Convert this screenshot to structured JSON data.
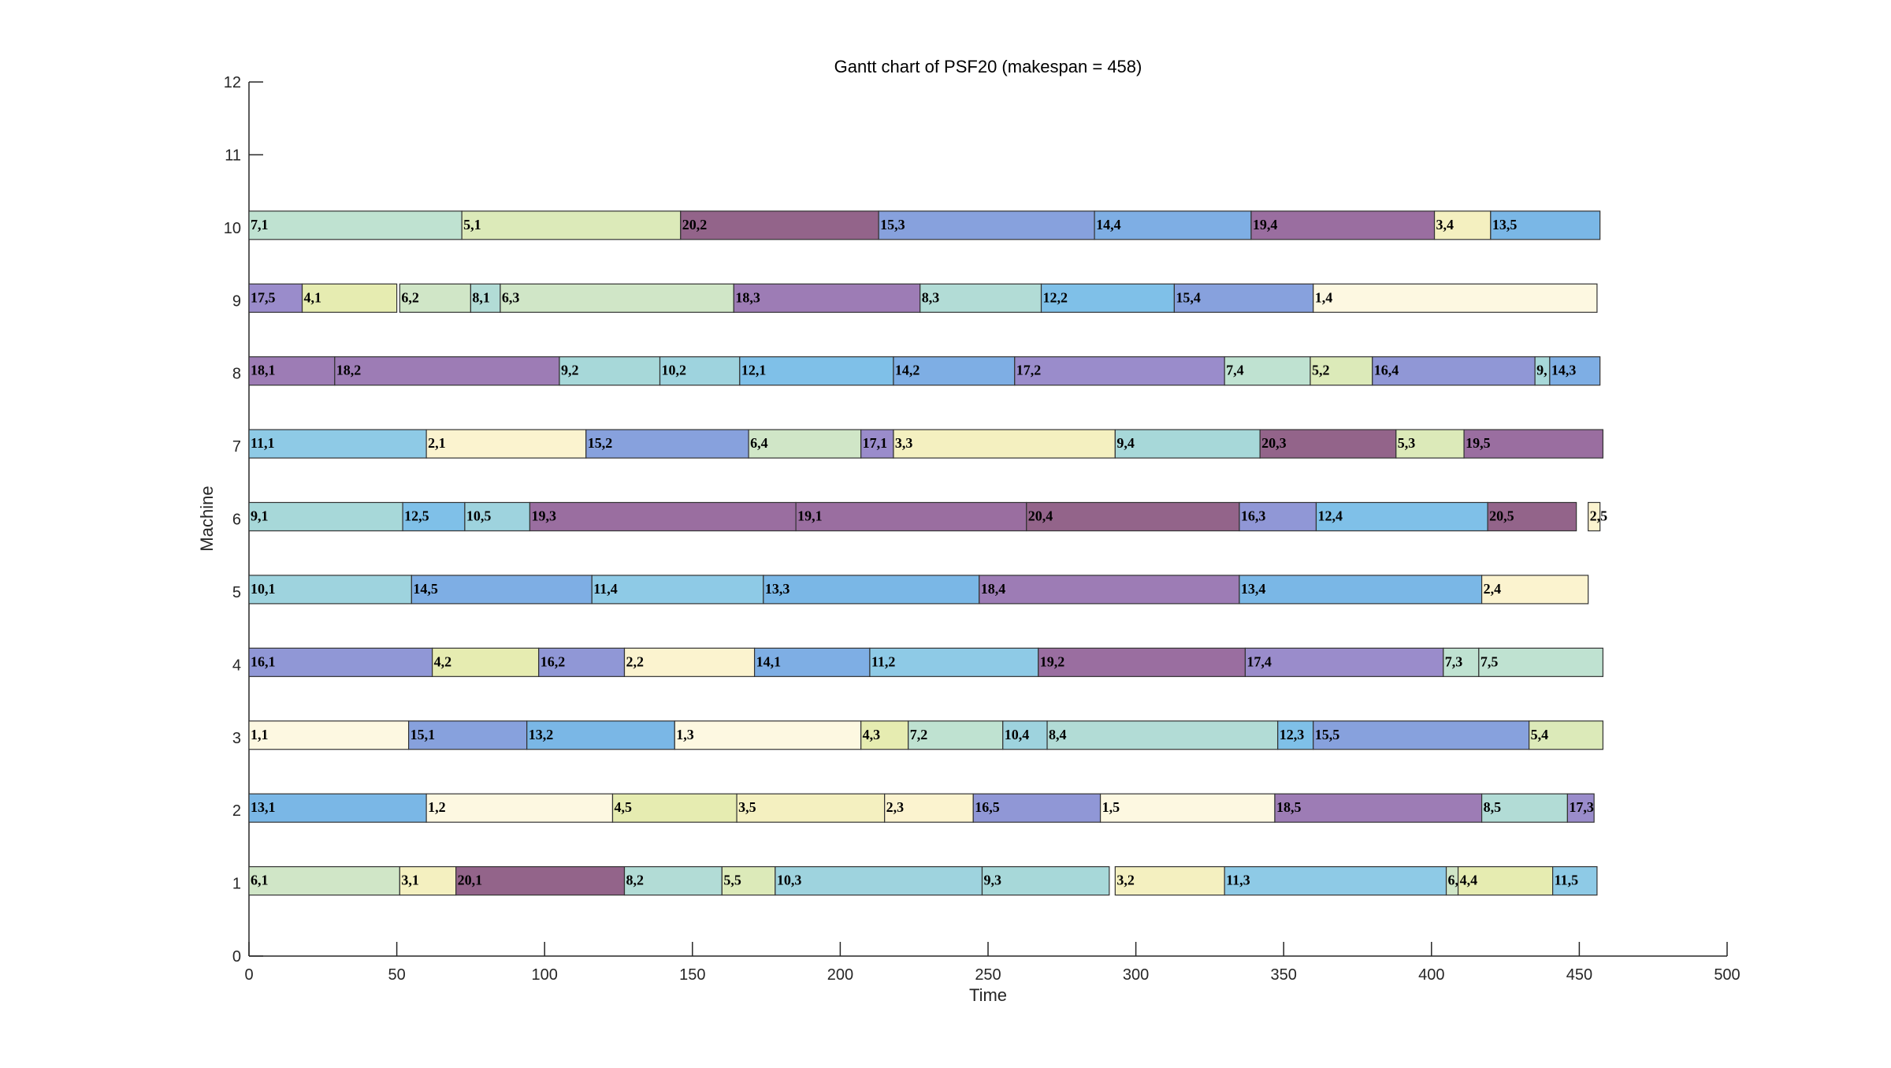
{
  "chart_data": {
    "type": "gantt",
    "title": "Gantt chart of PSF20 (makespan = 458)",
    "xlabel": "Time",
    "ylabel": "Machine",
    "xlim": [
      0,
      500
    ],
    "ylim": [
      0,
      12
    ],
    "x_ticks": [
      0,
      50,
      100,
      150,
      200,
      250,
      300,
      350,
      400,
      450,
      500
    ],
    "y_ticks": [
      0,
      1,
      2,
      3,
      4,
      5,
      6,
      7,
      8,
      9,
      10,
      11,
      12
    ],
    "grid": false,
    "job_colors": {
      "1": "#fdf8e1",
      "2": "#fbf3cf",
      "3": "#f4f0c0",
      "4": "#e6ecb1",
      "5": "#dceab9",
      "6": "#d0e6c7",
      "7": "#bfe2d1",
      "8": "#b2dcd6",
      "9": "#a7d8d9",
      "10": "#9ed3de",
      "11": "#8ecae6",
      "12": "#7fc0e8",
      "13": "#7ab7e6",
      "14": "#7eaee4",
      "15": "#87a1dd",
      "16": "#9097d6",
      "17": "#9a8ccb",
      "18": "#9d7cb5",
      "19": "#9a6ea0",
      "20": "#93648a"
    },
    "machines": [
      {
        "machine": 1,
        "ops": [
          {
            "label": "6,1",
            "job": 6,
            "start": 0,
            "end": 51
          },
          {
            "label": "3,1",
            "job": 3,
            "start": 51,
            "end": 70
          },
          {
            "label": "20,1",
            "job": 20,
            "start": 70,
            "end": 127
          },
          {
            "label": "8,2",
            "job": 8,
            "start": 127,
            "end": 160
          },
          {
            "label": "5,5",
            "job": 5,
            "start": 160,
            "end": 178
          },
          {
            "label": "10,3",
            "job": 10,
            "start": 178,
            "end": 248
          },
          {
            "label": "9,3",
            "job": 9,
            "start": 248,
            "end": 291
          },
          {
            "label": "3,2",
            "job": 3,
            "start": 293,
            "end": 330
          },
          {
            "label": "11,3",
            "job": 11,
            "start": 330,
            "end": 405
          },
          {
            "label": "6,",
            "job": 6,
            "start": 405,
            "end": 409
          },
          {
            "label": "4,4",
            "job": 4,
            "start": 409,
            "end": 441
          },
          {
            "label": "11,5",
            "job": 11,
            "start": 441,
            "end": 456
          }
        ]
      },
      {
        "machine": 2,
        "ops": [
          {
            "label": "13,1",
            "job": 13,
            "start": 0,
            "end": 60
          },
          {
            "label": "1,2",
            "job": 1,
            "start": 60,
            "end": 123
          },
          {
            "label": "4,5",
            "job": 4,
            "start": 123,
            "end": 165
          },
          {
            "label": "3,5",
            "job": 3,
            "start": 165,
            "end": 215
          },
          {
            "label": "2,3",
            "job": 2,
            "start": 215,
            "end": 245
          },
          {
            "label": "16,5",
            "job": 16,
            "start": 245,
            "end": 288
          },
          {
            "label": "1,5",
            "job": 1,
            "start": 288,
            "end": 347
          },
          {
            "label": "18,5",
            "job": 18,
            "start": 347,
            "end": 417
          },
          {
            "label": "8,5",
            "job": 8,
            "start": 417,
            "end": 446
          },
          {
            "label": "17,3",
            "job": 17,
            "start": 446,
            "end": 455
          }
        ]
      },
      {
        "machine": 3,
        "ops": [
          {
            "label": "1,1",
            "job": 1,
            "start": 0,
            "end": 54
          },
          {
            "label": "15,1",
            "job": 15,
            "start": 54,
            "end": 94
          },
          {
            "label": "13,2",
            "job": 13,
            "start": 94,
            "end": 144
          },
          {
            "label": "1,3",
            "job": 1,
            "start": 144,
            "end": 207
          },
          {
            "label": "4,3",
            "job": 4,
            "start": 207,
            "end": 223
          },
          {
            "label": "7,2",
            "job": 7,
            "start": 223,
            "end": 255
          },
          {
            "label": "10,4",
            "job": 10,
            "start": 255,
            "end": 270
          },
          {
            "label": "8,4",
            "job": 8,
            "start": 270,
            "end": 348
          },
          {
            "label": "12,3",
            "job": 12,
            "start": 348,
            "end": 360
          },
          {
            "label": "15,5",
            "job": 15,
            "start": 360,
            "end": 433
          },
          {
            "label": "5,4",
            "job": 5,
            "start": 433,
            "end": 458
          }
        ]
      },
      {
        "machine": 4,
        "ops": [
          {
            "label": "16,1",
            "job": 16,
            "start": 0,
            "end": 62
          },
          {
            "label": "4,2",
            "job": 4,
            "start": 62,
            "end": 98
          },
          {
            "label": "16,2",
            "job": 16,
            "start": 98,
            "end": 127
          },
          {
            "label": "2,2",
            "job": 2,
            "start": 127,
            "end": 171
          },
          {
            "label": "14,1",
            "job": 14,
            "start": 171,
            "end": 210
          },
          {
            "label": "11,2",
            "job": 11,
            "start": 210,
            "end": 267
          },
          {
            "label": "19,2",
            "job": 19,
            "start": 267,
            "end": 337
          },
          {
            "label": "17,4",
            "job": 17,
            "start": 337,
            "end": 404
          },
          {
            "label": "7,3",
            "job": 7,
            "start": 404,
            "end": 416
          },
          {
            "label": "7,5",
            "job": 7,
            "start": 416,
            "end": 458
          }
        ]
      },
      {
        "machine": 5,
        "ops": [
          {
            "label": "10,1",
            "job": 10,
            "start": 0,
            "end": 55
          },
          {
            "label": "14,5",
            "job": 14,
            "start": 55,
            "end": 116
          },
          {
            "label": "11,4",
            "job": 11,
            "start": 116,
            "end": 174
          },
          {
            "label": "13,3",
            "job": 13,
            "start": 174,
            "end": 247
          },
          {
            "label": "18,4",
            "job": 18,
            "start": 247,
            "end": 335
          },
          {
            "label": "13,4",
            "job": 13,
            "start": 335,
            "end": 417
          },
          {
            "label": "2,4",
            "job": 2,
            "start": 417,
            "end": 453
          }
        ]
      },
      {
        "machine": 6,
        "ops": [
          {
            "label": "9,1",
            "job": 9,
            "start": 0,
            "end": 52
          },
          {
            "label": "12,5",
            "job": 12,
            "start": 52,
            "end": 73
          },
          {
            "label": "10,5",
            "job": 10,
            "start": 73,
            "end": 95
          },
          {
            "label": "19,3",
            "job": 19,
            "start": 95,
            "end": 185
          },
          {
            "label": "19,1",
            "job": 19,
            "start": 185,
            "end": 263
          },
          {
            "label": "20,4",
            "job": 20,
            "start": 263,
            "end": 335
          },
          {
            "label": "16,3",
            "job": 16,
            "start": 335,
            "end": 361
          },
          {
            "label": "12,4",
            "job": 12,
            "start": 361,
            "end": 419
          },
          {
            "label": "20,5",
            "job": 20,
            "start": 419,
            "end": 449
          },
          {
            "label": "2,5",
            "job": 2,
            "start": 453,
            "end": 457
          }
        ]
      },
      {
        "machine": 7,
        "ops": [
          {
            "label": "11,1",
            "job": 11,
            "start": 0,
            "end": 60
          },
          {
            "label": "2,1",
            "job": 2,
            "start": 60,
            "end": 114
          },
          {
            "label": "15,2",
            "job": 15,
            "start": 114,
            "end": 169
          },
          {
            "label": "6,4",
            "job": 6,
            "start": 169,
            "end": 207
          },
          {
            "label": "17,1",
            "job": 17,
            "start": 207,
            "end": 218
          },
          {
            "label": "3,3",
            "job": 3,
            "start": 218,
            "end": 293
          },
          {
            "label": "9,4",
            "job": 9,
            "start": 293,
            "end": 342
          },
          {
            "label": "20,3",
            "job": 20,
            "start": 342,
            "end": 388
          },
          {
            "label": "5,3",
            "job": 5,
            "start": 388,
            "end": 411
          },
          {
            "label": "19,5",
            "job": 19,
            "start": 411,
            "end": 458
          }
        ]
      },
      {
        "machine": 8,
        "ops": [
          {
            "label": "18,1",
            "job": 18,
            "start": 0,
            "end": 29
          },
          {
            "label": "18,2",
            "job": 18,
            "start": 29,
            "end": 105
          },
          {
            "label": "9,2",
            "job": 9,
            "start": 105,
            "end": 139
          },
          {
            "label": "10,2",
            "job": 10,
            "start": 139,
            "end": 166
          },
          {
            "label": "12,1",
            "job": 12,
            "start": 166,
            "end": 218
          },
          {
            "label": "14,2",
            "job": 14,
            "start": 218,
            "end": 259
          },
          {
            "label": "17,2",
            "job": 17,
            "start": 259,
            "end": 330
          },
          {
            "label": "7,4",
            "job": 7,
            "start": 330,
            "end": 359
          },
          {
            "label": "5,2",
            "job": 5,
            "start": 359,
            "end": 380
          },
          {
            "label": "16,4",
            "job": 16,
            "start": 380,
            "end": 435
          },
          {
            "label": "9,",
            "job": 9,
            "start": 435,
            "end": 440
          },
          {
            "label": "14,3",
            "job": 14,
            "start": 440,
            "end": 457
          }
        ]
      },
      {
        "machine": 9,
        "ops": [
          {
            "label": "17,5",
            "job": 17,
            "start": 0,
            "end": 18
          },
          {
            "label": "4,1",
            "job": 4,
            "start": 18,
            "end": 50
          },
          {
            "label": "6,2",
            "job": 6,
            "start": 51,
            "end": 75
          },
          {
            "label": "8,1",
            "job": 8,
            "start": 75,
            "end": 85
          },
          {
            "label": "6,3",
            "job": 6,
            "start": 85,
            "end": 164
          },
          {
            "label": "18,3",
            "job": 18,
            "start": 164,
            "end": 227
          },
          {
            "label": "8,3",
            "job": 8,
            "start": 227,
            "end": 268
          },
          {
            "label": "12,2",
            "job": 12,
            "start": 268,
            "end": 313
          },
          {
            "label": "15,4",
            "job": 15,
            "start": 313,
            "end": 360
          },
          {
            "label": "1,4",
            "job": 1,
            "start": 360,
            "end": 456
          }
        ]
      },
      {
        "machine": 10,
        "ops": [
          {
            "label": "7,1",
            "job": 7,
            "start": 0,
            "end": 72
          },
          {
            "label": "5,1",
            "job": 5,
            "start": 72,
            "end": 146
          },
          {
            "label": "20,2",
            "job": 20,
            "start": 146,
            "end": 213
          },
          {
            "label": "15,3",
            "job": 15,
            "start": 213,
            "end": 286
          },
          {
            "label": "14,4",
            "job": 14,
            "start": 286,
            "end": 339
          },
          {
            "label": "19,4",
            "job": 19,
            "start": 339,
            "end": 401
          },
          {
            "label": "3,4",
            "job": 3,
            "start": 401,
            "end": 420
          },
          {
            "label": "13,5",
            "job": 13,
            "start": 420,
            "end": 457
          }
        ]
      }
    ]
  }
}
